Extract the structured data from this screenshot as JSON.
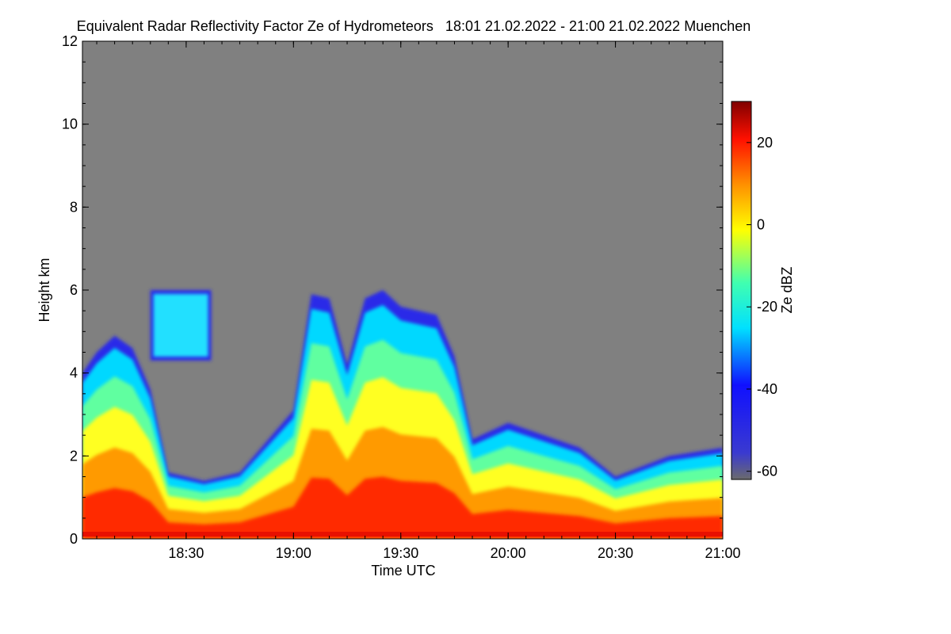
{
  "chart_data": {
    "type": "heatmap",
    "title": "Equivalent Radar Reflectivity Factor Ze of Hydrometeors   18:01 21.02.2022 - 21:00 21.02.2022 Muenchen",
    "xlabel": "Time UTC",
    "ylabel": "Height km",
    "x_ticks": [
      "18:30",
      "19:00",
      "19:30",
      "20:00",
      "20:30",
      "21:00"
    ],
    "x_range": [
      "18:01",
      "21:00"
    ],
    "y_ticks": [
      0,
      2,
      4,
      6,
      8,
      10,
      12
    ],
    "ylim": [
      0,
      12
    ],
    "colorbar": {
      "label": "Ze dBZ",
      "ticks": [
        20,
        0,
        -20,
        -40,
        -60
      ],
      "range": [
        -62,
        30
      ],
      "no_signal_color": "#808080",
      "colors": [
        "#6b6b6b",
        "#2020ff",
        "#00ffff",
        "#ffff00",
        "#ff8000",
        "#ff0000",
        "#800000"
      ]
    },
    "echo_tops_km": [
      [
        "18:01",
        4.0
      ],
      [
        "18:05",
        4.5
      ],
      [
        "18:10",
        4.9
      ],
      [
        "18:15",
        4.6
      ],
      [
        "18:20",
        3.6
      ],
      [
        "18:25",
        1.6
      ],
      [
        "18:35",
        1.4
      ],
      [
        "18:45",
        1.6
      ],
      [
        "18:50",
        2.1
      ],
      [
        "18:55",
        2.6
      ],
      [
        "19:00",
        3.1
      ],
      [
        "19:05",
        5.9
      ],
      [
        "19:10",
        5.8
      ],
      [
        "19:15",
        4.2
      ],
      [
        "19:20",
        5.8
      ],
      [
        "19:25",
        6.0
      ],
      [
        "19:30",
        5.6
      ],
      [
        "19:40",
        5.4
      ],
      [
        "19:45",
        4.4
      ],
      [
        "19:50",
        2.4
      ],
      [
        "20:00",
        2.8
      ],
      [
        "20:10",
        2.5
      ],
      [
        "20:20",
        2.2
      ],
      [
        "20:30",
        1.5
      ],
      [
        "20:45",
        2.0
      ],
      [
        "21:00",
        2.2
      ]
    ],
    "upper_cloud_layer_km": {
      "from": "18:20",
      "to": "18:37",
      "base": 4.3,
      "top": 6.0
    }
  }
}
